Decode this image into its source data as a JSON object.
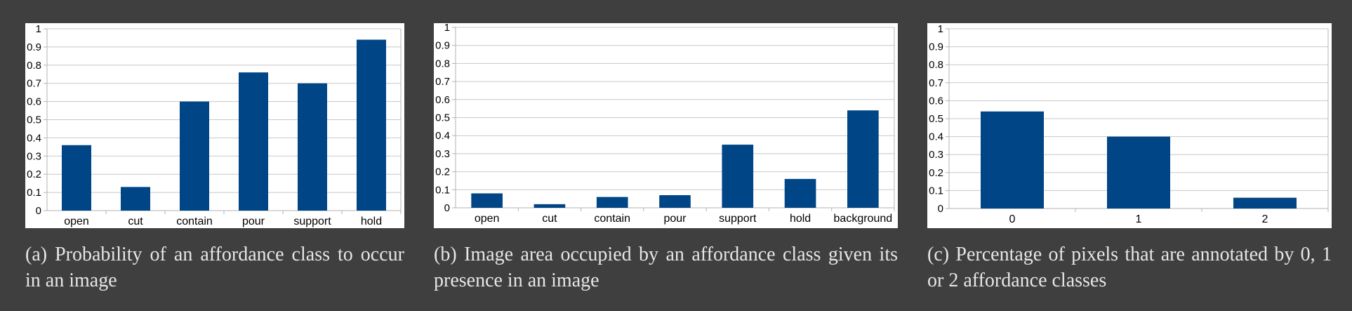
{
  "colors": {
    "bar": "#004586",
    "grid": "#c8c8c8",
    "axis": "#b3b3b3",
    "background": "#3f3f3f"
  },
  "panels": [
    {
      "caption": "(a) Probability of an affordance class to occur in an image",
      "chart_data": {
        "type": "bar",
        "categories": [
          "open",
          "cut",
          "contain",
          "pour",
          "support",
          "hold"
        ],
        "values": [
          0.36,
          0.13,
          0.6,
          0.76,
          0.7,
          0.94
        ],
        "ylim": [
          0,
          1
        ],
        "yticks": [
          "0",
          "0.1",
          "0.2",
          "0.3",
          "0.4",
          "0.5",
          "0.6",
          "0.7",
          "0.8",
          "0.9",
          "1"
        ],
        "grid": true,
        "legend": "none"
      }
    },
    {
      "caption": "(b) Image area occupied by an affordance class given its presence in an image",
      "chart_data": {
        "type": "bar",
        "categories": [
          "open",
          "cut",
          "contain",
          "pour",
          "support",
          "hold",
          "background"
        ],
        "values": [
          0.08,
          0.02,
          0.06,
          0.07,
          0.35,
          0.16,
          0.54
        ],
        "ylim": [
          0,
          1
        ],
        "yticks": [
          "0",
          "0.1",
          "0.2",
          "0.3",
          "0.4",
          "0.5",
          "0.6",
          "0.7",
          "0.8",
          "0.9",
          "1"
        ],
        "grid": true,
        "legend": "none"
      }
    },
    {
      "caption": "(c) Percentage of pixels that are annotated by 0, 1 or 2 affordance classes",
      "chart_data": {
        "type": "bar",
        "categories": [
          "0",
          "1",
          "2"
        ],
        "values": [
          0.54,
          0.4,
          0.06
        ],
        "ylim": [
          0,
          1
        ],
        "yticks": [
          "0",
          "0.1",
          "0.2",
          "0.3",
          "0.4",
          "0.5",
          "0.6",
          "0.7",
          "0.8",
          "0.9",
          "1"
        ],
        "grid": true,
        "legend": "none"
      }
    }
  ]
}
